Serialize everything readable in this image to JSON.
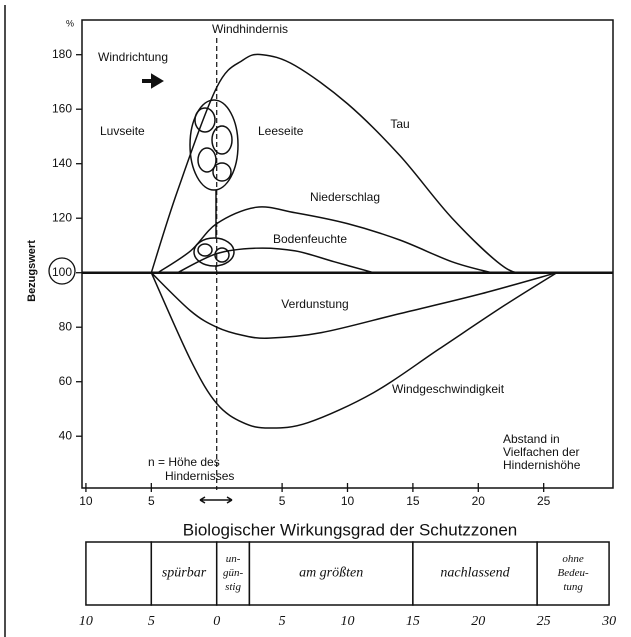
{
  "chart_data": [
    {
      "type": "line",
      "y_unit": "%",
      "ylabel": "Bezugswert",
      "xlim": [
        -10.3,
        30.3
      ],
      "ylim": [
        21,
        192
      ],
      "xticks": [
        {
          "value": -10,
          "label": "10"
        },
        {
          "value": -5,
          "label": "5"
        },
        5,
        10,
        15,
        20,
        25
      ],
      "yticks": [
        40,
        60,
        80,
        100,
        120,
        140,
        160,
        180
      ],
      "hline": 100,
      "vline": 0,
      "annotations": [
        "Windhindernis",
        "Windrichtung",
        "Luvseite",
        "Leeseite",
        "n = Höhe des",
        "Hindernisses",
        "Abstand in",
        "Vielfachen der",
        "Hindernishöhe"
      ],
      "series": [
        {
          "name": "Tau",
          "color": "#111111",
          "x": [
            -5,
            -3,
            0,
            2,
            3.5,
            6,
            10,
            14,
            18,
            22,
            24
          ],
          "values": [
            100,
            130,
            168,
            178,
            180,
            176,
            162,
            143,
            120,
            102,
            100
          ]
        },
        {
          "name": "Niederschlag",
          "color": "#111111",
          "x": [
            -4.5,
            -2,
            0,
            3,
            6,
            10,
            14,
            18,
            21
          ],
          "values": [
            100,
            108,
            118,
            124,
            122,
            118,
            112,
            104,
            100
          ]
        },
        {
          "name": "Bodenfeuchte",
          "color": "#111111",
          "x": [
            -3,
            0,
            3,
            6,
            9,
            12
          ],
          "values": [
            100,
            107,
            109,
            108,
            104,
            100
          ]
        },
        {
          "name": "Verdunstung",
          "color": "#111111",
          "x": [
            -5,
            -2,
            0,
            2,
            4,
            8,
            14,
            20,
            26
          ],
          "values": [
            100,
            86,
            80,
            77,
            76,
            78,
            85,
            92,
            100
          ]
        },
        {
          "name": "Windgeschwindigkeit",
          "color": "#111111",
          "x": [
            -5,
            -2,
            0,
            2,
            4,
            7,
            12,
            17,
            22,
            26
          ],
          "values": [
            100,
            68,
            52,
            45,
            43,
            45,
            56,
            72,
            88,
            100
          ]
        }
      ]
    },
    {
      "type": "zones",
      "title": "Biologischer Wirkungsgrad der Schutzzonen",
      "xlim": [
        -10.3,
        30.3
      ],
      "xticks": [
        {
          "value": -10,
          "label": "10"
        },
        {
          "value": -5,
          "label": "5"
        },
        0,
        5,
        10,
        15,
        20,
        25,
        30
      ],
      "zones": [
        {
          "from": -10,
          "to": -5
        },
        {
          "from": -5,
          "to": 0,
          "label": [
            "spürbar"
          ]
        },
        {
          "from": 0,
          "to": 2.5,
          "label": [
            "un-",
            "gün-",
            "stig"
          ]
        },
        {
          "from": 2.5,
          "to": 15,
          "label": [
            "am größten"
          ]
        },
        {
          "from": 15,
          "to": 24.5,
          "label": [
            "nachlassend"
          ]
        },
        {
          "from": 24.5,
          "to": 30,
          "label": [
            "ohne",
            "Bedeu-",
            "tung"
          ]
        }
      ]
    }
  ]
}
